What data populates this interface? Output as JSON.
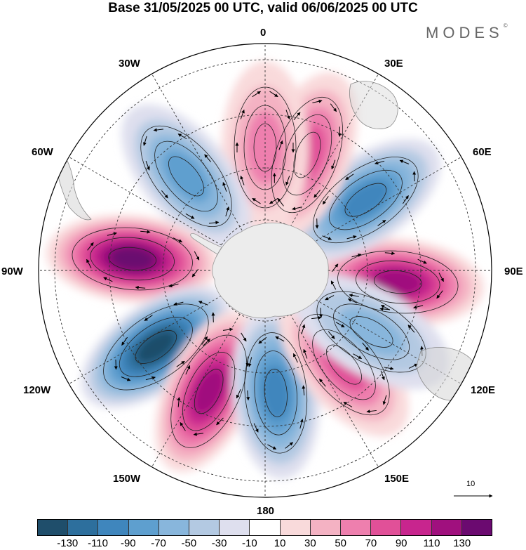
{
  "title": "Base 31/05/2025 00 UTC, valid 06/06/2025 00 UTC",
  "logo": "MODES",
  "logo_mark": "©",
  "longitude_labels": {
    "lon_0": "0",
    "lon_30e": "30E",
    "lon_60e": "60E",
    "lon_90e": "90E",
    "lon_120e": "120E",
    "lon_150e": "150E",
    "lon_180": "180",
    "lon_150w": "150W",
    "lon_120w": "120W",
    "lon_90w": "90W",
    "lon_60w": "60W",
    "lon_30w": "30W"
  },
  "reference_vector": "10",
  "colorbar": {
    "colors": [
      "#1f4e6b",
      "#2d6f9d",
      "#3f86bd",
      "#5e9fcf",
      "#88b6dc",
      "#b3c9e2",
      "#dedfee",
      "#ffffff",
      "#f9dadb",
      "#f4b2c3",
      "#ee7fae",
      "#e15098",
      "#c8258e",
      "#a0107e",
      "#6b0a70"
    ],
    "tick_labels": [
      "-130",
      "-110",
      "-90",
      "-70",
      "-50",
      "-30",
      "-10",
      "10",
      "30",
      "50",
      "70",
      "90",
      "110",
      "130"
    ]
  },
  "anomaly_centers": [
    {
      "lon": 95,
      "sign": "positive",
      "value": 115
    },
    {
      "lon": 55,
      "sign": "negative",
      "value": -95
    },
    {
      "lon": 20,
      "sign": "positive",
      "value": 60
    },
    {
      "lon": 0,
      "sign": "positive",
      "value": 50
    },
    {
      "lon": -40,
      "sign": "negative",
      "value": -70
    },
    {
      "lon": -85,
      "sign": "positive",
      "value": 120
    },
    {
      "lon": -125,
      "sign": "negative",
      "value": -130
    },
    {
      "lon": -155,
      "sign": "positive",
      "value": 115
    },
    {
      "lon": 175,
      "sign": "negative",
      "value": -95
    },
    {
      "lon": 140,
      "sign": "positive",
      "value": 70
    },
    {
      "lon": 120,
      "sign": "negative",
      "value": -40
    }
  ]
}
